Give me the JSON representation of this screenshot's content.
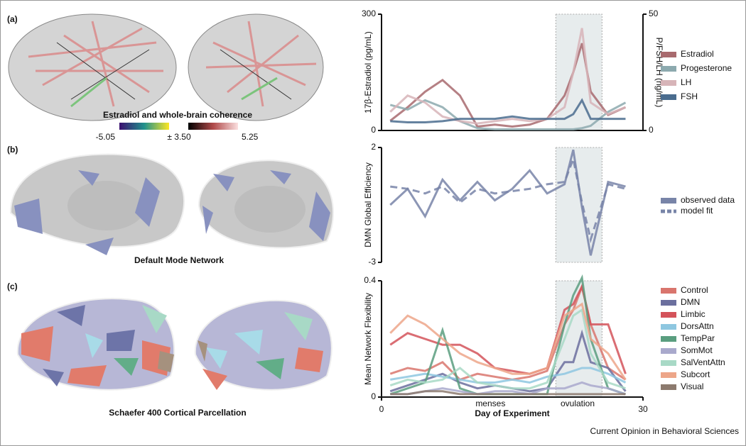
{
  "figure": {
    "panel_labels": [
      "(a)",
      "(b)",
      "(c)"
    ],
    "brain_a_title": "Estradiol and whole-brain coherence",
    "colorbar_labels": [
      "-5.05",
      "± 3.50",
      "5.25"
    ],
    "brain_b_title": "Default Mode Network",
    "brain_c_title": "Schaefer 400 Cortical Parcellation",
    "footer": "Current Opinion in Behavioral Sciences"
  },
  "chart_data": [
    {
      "type": "line",
      "ylabel": "17β-Estradiol (pg/mL)",
      "y2label": "P/FSH/LH (ng/mL)",
      "x": [
        1,
        3,
        5,
        7,
        9,
        11,
        13,
        15,
        17,
        19,
        21,
        22,
        23,
        24,
        26,
        28
      ],
      "xlim": [
        0,
        30
      ],
      "ylim": [
        0,
        300
      ],
      "yticks": [
        0,
        300
      ],
      "y2lim": [
        0,
        50
      ],
      "y2ticks": [
        0,
        50
      ],
      "highlight_x": [
        20,
        25.3
      ],
      "series": [
        {
          "name": "Estradiol",
          "color": "#a86a6e",
          "values": [
            25,
            60,
            100,
            130,
            90,
            10,
            15,
            10,
            15,
            30,
            90,
            150,
            225,
            100,
            40,
            60
          ]
        },
        {
          "name": "Progesterone",
          "color": "#8ca9ae",
          "axis": "y2",
          "values": [
            11,
            9,
            13,
            10,
            4,
            1,
            0.5,
            0.5,
            0.5,
            0.5,
            0.5,
            0.5,
            1,
            2,
            8,
            12
          ]
        },
        {
          "name": "LH",
          "color": "#d7b4b8",
          "axis": "y2",
          "values": [
            8,
            15,
            12,
            6,
            4,
            3,
            4,
            5,
            4,
            5,
            10,
            25,
            44,
            12,
            7,
            10
          ]
        },
        {
          "name": "FSH",
          "color": "#4a6c8e",
          "axis": "y2",
          "values": [
            4,
            3.5,
            3.5,
            4,
            5,
            5,
            5,
            6,
            5,
            5,
            5,
            7,
            13,
            5,
            5,
            5
          ]
        }
      ]
    },
    {
      "type": "line",
      "ylabel": "DMN Global Efficiency",
      "x": [
        1,
        3,
        5,
        7,
        9,
        11,
        13,
        15,
        17,
        19,
        21,
        22,
        23,
        24,
        26,
        28
      ],
      "xlim": [
        0,
        30
      ],
      "ylim": [
        -3,
        2
      ],
      "yticks": [
        -3,
        2
      ],
      "highlight_x": [
        20,
        25.3
      ],
      "series": [
        {
          "name": "observed data",
          "color": "#7884a8",
          "values": [
            -0.5,
            0.2,
            -1.0,
            0.6,
            -0.3,
            0.5,
            -0.3,
            0.2,
            1.0,
            0.0,
            0.4,
            1.9,
            -0.6,
            -2.7,
            0.5,
            0.3
          ]
        },
        {
          "name": "model fit",
          "color": "#7884a8",
          "dash": true,
          "values": [
            0.3,
            0.2,
            0.0,
            0.3,
            -0.4,
            0.2,
            0.0,
            0.1,
            0.2,
            0.4,
            0.5,
            1.5,
            -0.4,
            -2.0,
            0.4,
            0.2
          ]
        }
      ]
    },
    {
      "type": "line",
      "ylabel": "Mean Network Flexibility",
      "xlabel": "Day of Experiment",
      "x": [
        1,
        3,
        5,
        7,
        9,
        11,
        13,
        15,
        17,
        19,
        21,
        22,
        23,
        24,
        26,
        28
      ],
      "xlim": [
        0,
        30
      ],
      "xticks": [
        0,
        30
      ],
      "ylim": [
        0,
        0.4
      ],
      "yticks": [
        0,
        0.4
      ],
      "highlight_x": [
        20,
        25.3
      ],
      "annotations": [
        {
          "text": "menses",
          "x": 12.5
        },
        {
          "text": "ovulation",
          "x": 22.5
        }
      ],
      "series": [
        {
          "name": "Control",
          "color": "#d9756d",
          "values": [
            0.08,
            0.1,
            0.09,
            0.12,
            0.06,
            0.08,
            0.07,
            0.06,
            0.07,
            0.09,
            0.25,
            0.3,
            0.38,
            0.25,
            0.1,
            0.06
          ]
        },
        {
          "name": "DMN",
          "color": "#6b6f9e",
          "values": [
            0.02,
            0.04,
            0.06,
            0.08,
            0.05,
            0.03,
            0.04,
            0.03,
            0.02,
            0.03,
            0.12,
            0.12,
            0.22,
            0.12,
            0.1,
            0.02
          ]
        },
        {
          "name": "Limbic",
          "color": "#d4535a",
          "values": [
            0.18,
            0.22,
            0.2,
            0.18,
            0.18,
            0.15,
            0.1,
            0.09,
            0.08,
            0.1,
            0.3,
            0.32,
            0.38,
            0.25,
            0.25,
            0.08
          ]
        },
        {
          "name": "DorsAttn",
          "color": "#8ec7e0",
          "values": [
            0.06,
            0.07,
            0.08,
            0.07,
            0.06,
            0.05,
            0.05,
            0.06,
            0.05,
            0.07,
            0.08,
            0.09,
            0.1,
            0.1,
            0.08,
            0.05
          ]
        },
        {
          "name": "TempPar",
          "color": "#5a9e7f",
          "values": [
            0.01,
            0.03,
            0.05,
            0.23,
            0.03,
            0.01,
            0.01,
            0.01,
            0.01,
            0.01,
            0.25,
            0.35,
            0.41,
            0.2,
            0.03,
            0.01
          ]
        },
        {
          "name": "SomMot",
          "color": "#a9a9cc",
          "values": [
            0.01,
            0.01,
            0.02,
            0.03,
            0.02,
            0.01,
            0.02,
            0.02,
            0.01,
            0.03,
            0.03,
            0.04,
            0.05,
            0.04,
            0.03,
            0.01
          ]
        },
        {
          "name": "SalVentAttn",
          "color": "#a8d9c6",
          "values": [
            0.04,
            0.06,
            0.05,
            0.06,
            0.1,
            0.05,
            0.04,
            0.03,
            0.03,
            0.05,
            0.2,
            0.28,
            0.3,
            0.15,
            0.05,
            0.03
          ]
        },
        {
          "name": "Subcort",
          "color": "#eda689",
          "values": [
            0.22,
            0.28,
            0.25,
            0.2,
            0.15,
            0.12,
            0.1,
            0.08,
            0.08,
            0.1,
            0.28,
            0.3,
            0.32,
            0.2,
            0.15,
            0.06
          ]
        },
        {
          "name": "Visual",
          "color": "#8c7a6e",
          "values": [
            0.01,
            0.01,
            0.02,
            0.02,
            0.01,
            0.01,
            0.01,
            0.01,
            0.01,
            0.01,
            0.01,
            0.01,
            0.01,
            0.01,
            0.01,
            0.01
          ]
        }
      ]
    }
  ]
}
